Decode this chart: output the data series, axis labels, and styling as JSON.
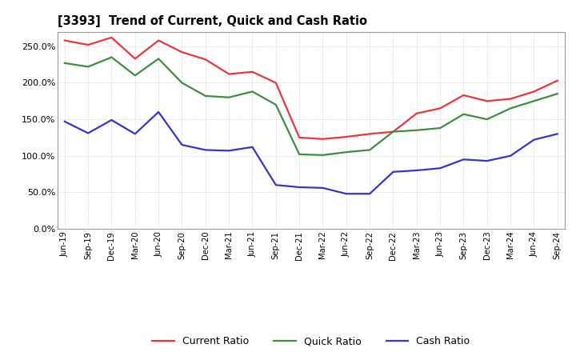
{
  "title": "[3393]  Trend of Current, Quick and Cash Ratio",
  "x_labels": [
    "Jun-19",
    "Sep-19",
    "Dec-19",
    "Mar-20",
    "Jun-20",
    "Sep-20",
    "Dec-20",
    "Mar-21",
    "Jun-21",
    "Sep-21",
    "Dec-21",
    "Mar-22",
    "Jun-22",
    "Sep-22",
    "Dec-22",
    "Mar-23",
    "Jun-23",
    "Sep-23",
    "Dec-23",
    "Mar-24",
    "Jun-24",
    "Sep-24"
  ],
  "current_ratio": [
    258,
    252,
    262,
    233,
    258,
    242,
    232,
    212,
    215,
    200,
    125,
    123,
    126,
    130,
    133,
    158,
    165,
    183,
    175,
    178,
    188,
    203
  ],
  "quick_ratio": [
    227,
    222,
    235,
    210,
    233,
    200,
    182,
    180,
    188,
    170,
    102,
    101,
    105,
    108,
    133,
    135,
    138,
    157,
    150,
    165,
    175,
    185
  ],
  "cash_ratio": [
    147,
    131,
    149,
    130,
    160,
    115,
    108,
    107,
    112,
    60,
    57,
    56,
    48,
    48,
    78,
    80,
    83,
    95,
    93,
    100,
    122,
    130
  ],
  "current_color": "#e8373b",
  "quick_color": "#3c8f3c",
  "cash_color": "#3535cc",
  "ylim": [
    0,
    270
  ],
  "yticks": [
    0,
    50,
    100,
    150,
    200,
    250
  ],
  "background_color": "#ffffff",
  "plot_bg_color": "#ffffff",
  "grid_color": "#888888",
  "legend_labels": [
    "Current Ratio",
    "Quick Ratio",
    "Cash Ratio"
  ]
}
